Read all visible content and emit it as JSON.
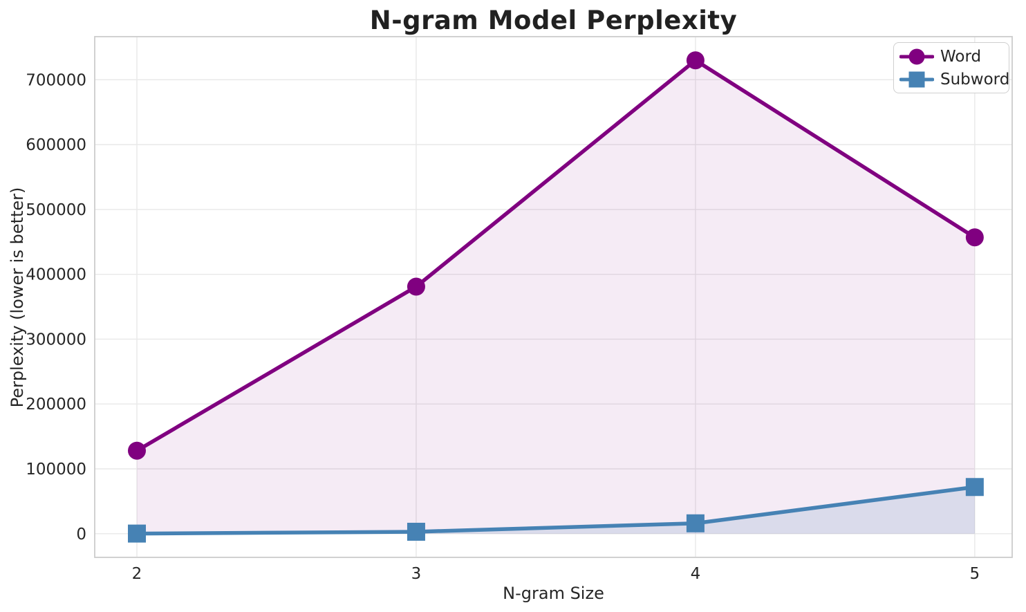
{
  "chart_data": {
    "type": "line",
    "title": "N-gram Model Perplexity",
    "xlabel": "N-gram Size",
    "ylabel": "Perplexity (lower is better)",
    "x": [
      2,
      3,
      4,
      5
    ],
    "xtick_labels": [
      "2",
      "3",
      "4",
      "5"
    ],
    "series": [
      {
        "name": "Word",
        "marker": "circle",
        "color": "#800080",
        "fill_opacity": 0.08,
        "values": [
          128000,
          381000,
          730000,
          457000
        ]
      },
      {
        "name": "Subword",
        "marker": "square",
        "color": "#4682b4",
        "fill_opacity": 0.15,
        "values": [
          200,
          3000,
          16000,
          72000
        ]
      }
    ],
    "yticks": [
      0,
      100000,
      200000,
      300000,
      400000,
      500000,
      600000,
      700000
    ],
    "ytick_labels": [
      "0",
      "100000",
      "200000",
      "300000",
      "400000",
      "500000",
      "600000",
      "700000"
    ],
    "xlim": [
      1.849,
      5.134
    ],
    "ylim": [
      -36500,
      766500
    ],
    "fill_baseline": 0,
    "grid": true,
    "legend_position": "upper right"
  },
  "colors": {
    "grid": "#e8e8e8",
    "spine": "#cccccc",
    "text": "#262626",
    "background": "#ffffff"
  }
}
